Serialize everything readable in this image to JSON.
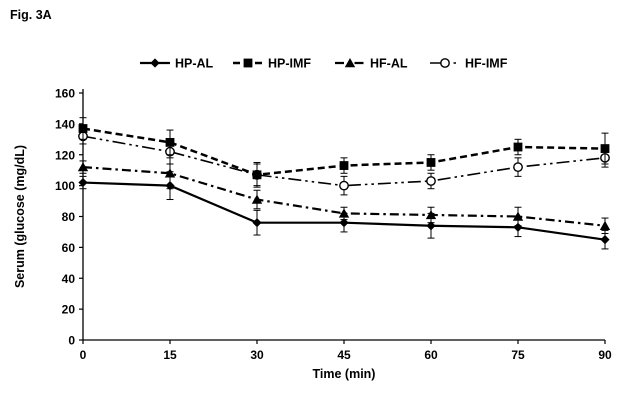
{
  "figure_label": "Fig. 3A",
  "colors": {
    "ink": "#000000",
    "background": "#ffffff"
  },
  "chart_data": {
    "type": "line",
    "title": "",
    "xlabel": "Time (min)",
    "ylabel": "Serum (glucose (mg/dL)",
    "x": [
      0,
      15,
      30,
      45,
      60,
      75,
      90
    ],
    "xlim": [
      0,
      90
    ],
    "ylim": [
      0,
      160
    ],
    "ytick_step": 20,
    "grid": false,
    "legend_position": "top",
    "error_bars": true,
    "series": [
      {
        "name": "HP-AL",
        "marker": "diamond-filled",
        "line_style": "solid",
        "values": [
          102,
          100,
          76,
          76,
          74,
          73,
          65
        ],
        "errors": [
          4,
          9,
          8,
          6,
          8,
          6,
          6
        ]
      },
      {
        "name": "HP-IMF",
        "marker": "square-filled",
        "line_style": "dashed",
        "values": [
          137,
          128,
          107,
          113,
          115,
          125,
          124
        ],
        "errors": [
          7,
          8,
          8,
          5,
          5,
          5,
          10
        ]
      },
      {
        "name": "HF-AL",
        "marker": "triangle-filled",
        "line_style": "dash-dot",
        "values": [
          112,
          108,
          91,
          82,
          81,
          80,
          74
        ],
        "errors": [
          4,
          10,
          6,
          4,
          5,
          6,
          5
        ]
      },
      {
        "name": "HF-IMF",
        "marker": "circle-open",
        "line_style": "long-dash-dot-dot",
        "values": [
          132,
          122,
          107,
          100,
          103,
          112,
          118
        ],
        "errors": [
          5,
          8,
          7,
          6,
          5,
          6,
          6
        ]
      }
    ]
  }
}
